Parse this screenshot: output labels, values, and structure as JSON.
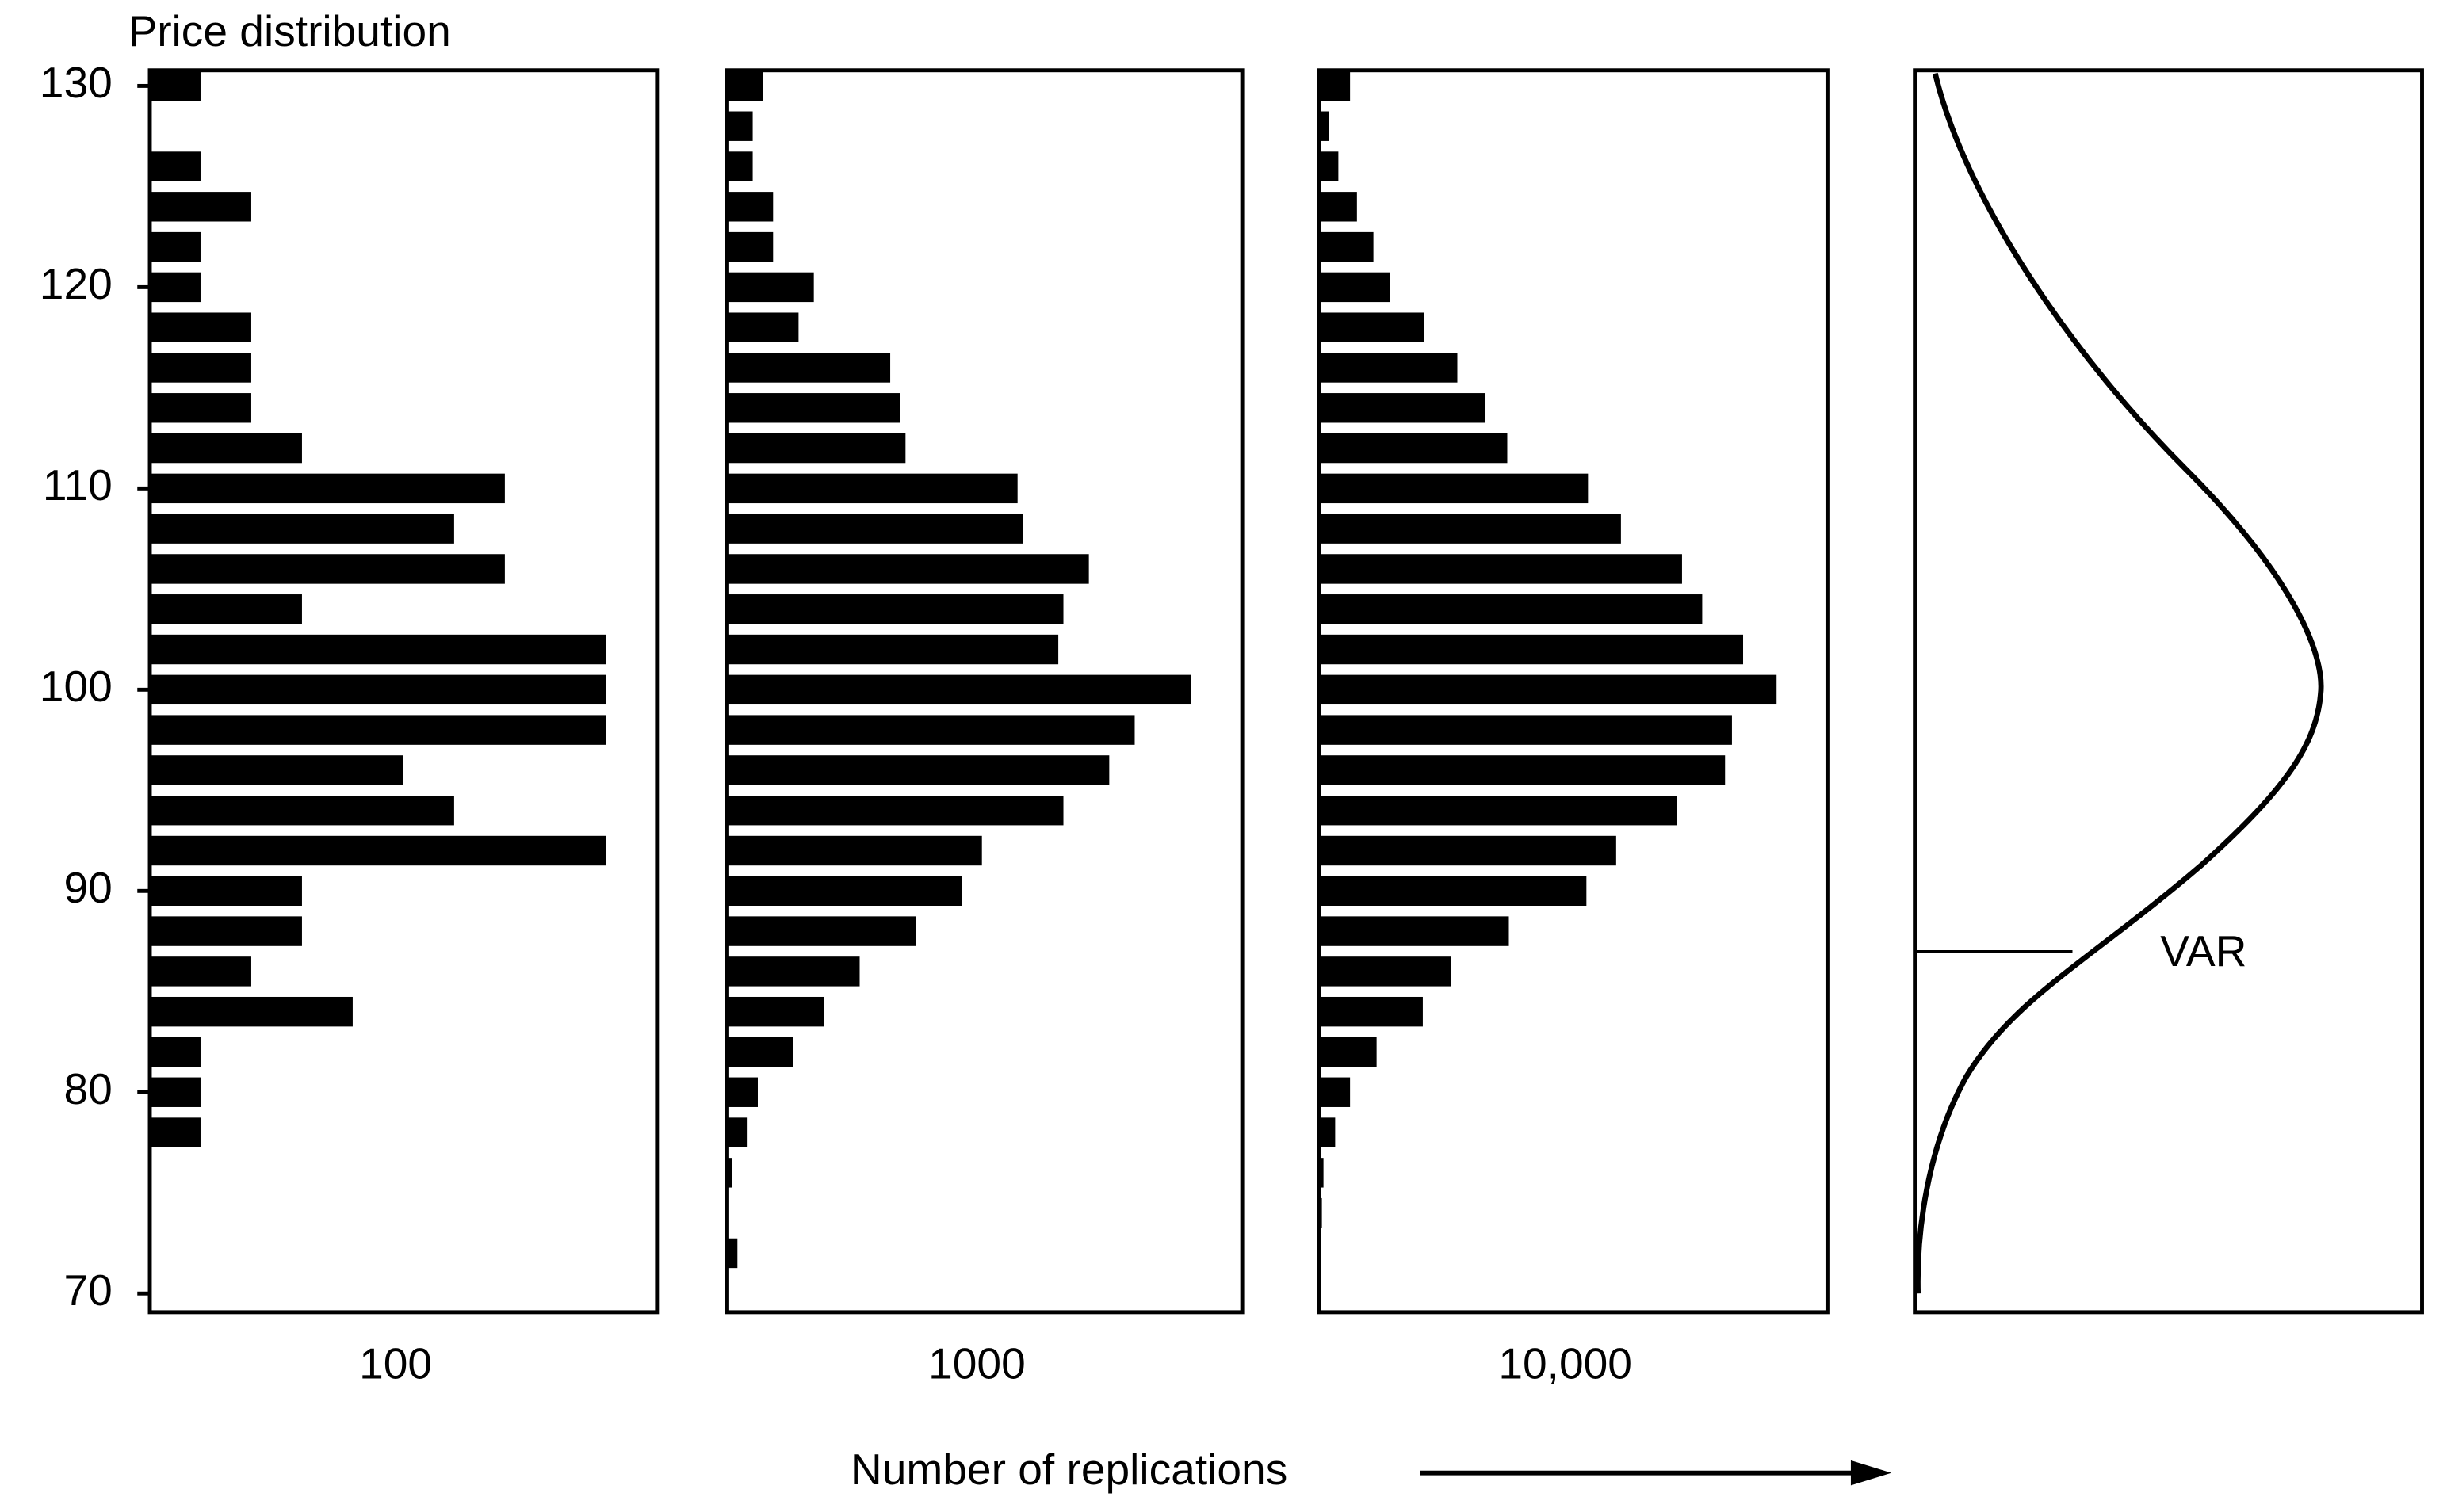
{
  "chart_data": {
    "type": "hbar-panels",
    "title": "Price distribution",
    "ylim": [
      70,
      130
    ],
    "yticks": [
      70,
      80,
      90,
      100,
      110,
      120,
      130
    ],
    "xlabel": "Number of replications",
    "panels": [
      {
        "type": "bar",
        "label": "100",
        "color": "#000000",
        "x": [
          78,
          80,
          82,
          84,
          86,
          88,
          90,
          92,
          94,
          96,
          98,
          100,
          102,
          104,
          106,
          108,
          110,
          112,
          114,
          116,
          118,
          120,
          122,
          124,
          126,
          130
        ],
        "values": [
          1,
          1,
          1,
          4,
          2,
          3,
          3,
          9,
          6,
          5,
          9,
          9,
          9,
          3,
          7,
          6,
          7,
          3,
          2,
          2,
          2,
          1,
          1,
          2,
          1,
          1
        ]
      },
      {
        "type": "bar",
        "label": "1000",
        "color": "#000000",
        "x": [
          72,
          76,
          78,
          80,
          82,
          84,
          86,
          88,
          90,
          92,
          94,
          96,
          98,
          100,
          102,
          104,
          106,
          108,
          110,
          112,
          114,
          116,
          118,
          120,
          122,
          124,
          126,
          128,
          130
        ],
        "values": [
          2,
          1,
          4,
          6,
          13,
          19,
          26,
          37,
          46,
          50,
          66,
          75,
          80,
          91,
          65,
          66,
          71,
          58,
          57,
          35,
          34,
          32,
          14,
          17,
          9,
          9,
          5,
          5,
          7
        ]
      },
      {
        "type": "bar",
        "label": "10,000",
        "color": "#000000",
        "x": [
          72,
          74,
          76,
          78,
          80,
          82,
          84,
          86,
          88,
          90,
          92,
          94,
          96,
          98,
          100,
          102,
          104,
          106,
          108,
          110,
          112,
          114,
          116,
          118,
          120,
          122,
          124,
          126,
          128,
          130
        ],
        "values": [
          3,
          6,
          9,
          31,
          59,
          109,
          196,
          249,
          358,
          504,
          560,
          675,
          765,
          778,
          862,
          799,
          722,
          684,
          569,
          507,
          355,
          314,
          261,
          199,
          134,
          103,
          72,
          37,
          19,
          59
        ]
      },
      {
        "type": "curve",
        "annotation": "VAR",
        "var_level": 87
      }
    ]
  }
}
